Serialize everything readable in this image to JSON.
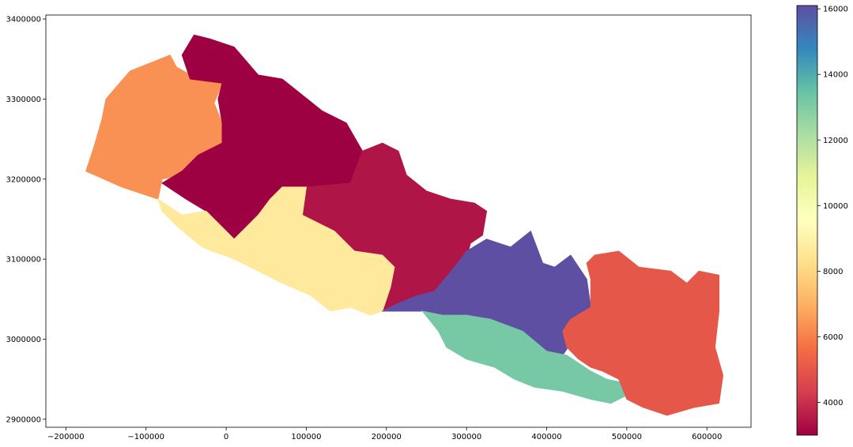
{
  "chart_data": {
    "type": "choropleth",
    "title": "",
    "xlabel": "",
    "ylabel": "",
    "xlim": [
      -225000,
      655000
    ],
    "ylim": [
      2890000,
      3405000
    ],
    "x_ticks": [
      -200000,
      -100000,
      0,
      100000,
      200000,
      300000,
      400000,
      500000,
      600000
    ],
    "y_ticks": [
      2900000,
      3000000,
      3100000,
      3200000,
      3300000,
      3400000
    ],
    "x_tick_labels": [
      "−200000",
      "−100000",
      "0",
      "100000",
      "200000",
      "300000",
      "400000",
      "500000",
      "600000"
    ],
    "y_tick_labels": [
      "2900000",
      "3000000",
      "3100000",
      "3200000",
      "3300000",
      "3400000"
    ],
    "colormap": "Spectral",
    "colorbar": {
      "range": [
        3000,
        16100
      ],
      "ticks": [
        4000,
        6000,
        8000,
        10000,
        12000,
        14000,
        16000
      ],
      "tick_labels": [
        "4000",
        "6000",
        "8000",
        "10000",
        "12000",
        "14000",
        "16000"
      ],
      "stops": [
        {
          "v": 0.0,
          "color": "#9e0142"
        },
        {
          "v": 0.1,
          "color": "#d53e4f"
        },
        {
          "v": 0.2,
          "color": "#f46d43"
        },
        {
          "v": 0.3,
          "color": "#fdae61"
        },
        {
          "v": 0.4,
          "color": "#fee08b"
        },
        {
          "v": 0.5,
          "color": "#ffffbf"
        },
        {
          "v": 0.6,
          "color": "#e6f598"
        },
        {
          "v": 0.7,
          "color": "#abdda4"
        },
        {
          "v": 0.8,
          "color": "#66c2a5"
        },
        {
          "v": 0.9,
          "color": "#3288bd"
        },
        {
          "v": 1.0,
          "color": "#5e4fa2"
        }
      ]
    },
    "regions": [
      {
        "value": 6500,
        "color": "#f99155",
        "polygon": [
          [
            -70000,
            3355000
          ],
          [
            -62000,
            3340000
          ],
          [
            -35000,
            3325000
          ],
          [
            -5000,
            3320000
          ],
          [
            -15000,
            3295000
          ],
          [
            -5000,
            3270000
          ],
          [
            -5000,
            3240000
          ],
          [
            -35000,
            3225000
          ],
          [
            -55000,
            3205000
          ],
          [
            -80000,
            3200000
          ],
          [
            -85000,
            3175000
          ],
          [
            -130000,
            3190000
          ],
          [
            -175000,
            3210000
          ],
          [
            -165000,
            3240000
          ],
          [
            -155000,
            3275000
          ],
          [
            -150000,
            3300000
          ],
          [
            -120000,
            3335000
          ]
        ]
      },
      {
        "value": 3000,
        "color": "#9e0142",
        "polygon": [
          [
            -40000,
            3380000
          ],
          [
            -20000,
            3375000
          ],
          [
            10000,
            3365000
          ],
          [
            40000,
            3330000
          ],
          [
            70000,
            3325000
          ],
          [
            120000,
            3285000
          ],
          [
            150000,
            3270000
          ],
          [
            170000,
            3235000
          ],
          [
            155000,
            3195000
          ],
          [
            100000,
            3190000
          ],
          [
            70000,
            3165000
          ],
          [
            40000,
            3155000
          ],
          [
            10000,
            3125000
          ],
          [
            -25000,
            3160000
          ],
          [
            -50000,
            3175000
          ],
          [
            -80000,
            3195000
          ],
          [
            -55000,
            3210000
          ],
          [
            -35000,
            3230000
          ],
          [
            -5000,
            3245000
          ],
          [
            -5000,
            3270000
          ],
          [
            -10000,
            3300000
          ],
          [
            -5000,
            3320000
          ],
          [
            -45000,
            3325000
          ],
          [
            -55000,
            3355000
          ]
        ]
      },
      {
        "value": 3600,
        "color": "#af1547",
        "polygon": [
          [
            170000,
            3235000
          ],
          [
            195000,
            3245000
          ],
          [
            215000,
            3235000
          ],
          [
            225000,
            3205000
          ],
          [
            250000,
            3185000
          ],
          [
            280000,
            3175000
          ],
          [
            310000,
            3170000
          ],
          [
            325000,
            3160000
          ],
          [
            320000,
            3130000
          ],
          [
            305000,
            3120000
          ],
          [
            295000,
            3085000
          ],
          [
            260000,
            3060000
          ],
          [
            240000,
            3055000
          ],
          [
            215000,
            3045000
          ],
          [
            195000,
            3035000
          ],
          [
            205000,
            3065000
          ],
          [
            210000,
            3090000
          ],
          [
            195000,
            3105000
          ],
          [
            160000,
            3110000
          ],
          [
            135000,
            3135000
          ],
          [
            95000,
            3155000
          ],
          [
            100000,
            3190000
          ],
          [
            155000,
            3195000
          ]
        ]
      },
      {
        "value": 9000,
        "color": "#fee99c",
        "polygon": [
          [
            -85000,
            3175000
          ],
          [
            -55000,
            3155000
          ],
          [
            -25000,
            3160000
          ],
          [
            10000,
            3125000
          ],
          [
            40000,
            3155000
          ],
          [
            55000,
            3175000
          ],
          [
            70000,
            3190000
          ],
          [
            100000,
            3190000
          ],
          [
            95000,
            3155000
          ],
          [
            135000,
            3135000
          ],
          [
            160000,
            3110000
          ],
          [
            195000,
            3105000
          ],
          [
            210000,
            3090000
          ],
          [
            205000,
            3065000
          ],
          [
            195000,
            3035000
          ],
          [
            180000,
            3030000
          ],
          [
            155000,
            3040000
          ],
          [
            130000,
            3035000
          ],
          [
            105000,
            3055000
          ],
          [
            70000,
            3070000
          ],
          [
            40000,
            3085000
          ],
          [
            10000,
            3100000
          ],
          [
            -30000,
            3115000
          ],
          [
            -60000,
            3140000
          ],
          [
            -80000,
            3160000
          ]
        ]
      },
      {
        "value": 16000,
        "color": "#5e4fa2",
        "polygon": [
          [
            195000,
            3035000
          ],
          [
            215000,
            3045000
          ],
          [
            240000,
            3055000
          ],
          [
            260000,
            3060000
          ],
          [
            285000,
            3090000
          ],
          [
            300000,
            3110000
          ],
          [
            325000,
            3125000
          ],
          [
            355000,
            3115000
          ],
          [
            380000,
            3135000
          ],
          [
            395000,
            3095000
          ],
          [
            410000,
            3090000
          ],
          [
            430000,
            3105000
          ],
          [
            450000,
            3075000
          ],
          [
            455000,
            3040000
          ],
          [
            425000,
            3020000
          ],
          [
            430000,
            2995000
          ],
          [
            420000,
            2980000
          ],
          [
            400000,
            2985000
          ],
          [
            370000,
            3010000
          ],
          [
            330000,
            3025000
          ],
          [
            300000,
            3030000
          ],
          [
            270000,
            3030000
          ],
          [
            245000,
            3035000
          ],
          [
            215000,
            3035000
          ]
        ]
      },
      {
        "value": 13000,
        "color": "#77c8a5",
        "polygon": [
          [
            245000,
            3035000
          ],
          [
            270000,
            3030000
          ],
          [
            300000,
            3030000
          ],
          [
            330000,
            3025000
          ],
          [
            370000,
            3010000
          ],
          [
            400000,
            2985000
          ],
          [
            425000,
            2980000
          ],
          [
            440000,
            2970000
          ],
          [
            455000,
            2960000
          ],
          [
            475000,
            2950000
          ],
          [
            500000,
            2945000
          ],
          [
            500000,
            2930000
          ],
          [
            480000,
            2920000
          ],
          [
            455000,
            2925000
          ],
          [
            420000,
            2935000
          ],
          [
            385000,
            2940000
          ],
          [
            360000,
            2950000
          ],
          [
            335000,
            2965000
          ],
          [
            300000,
            2975000
          ],
          [
            275000,
            2990000
          ],
          [
            265000,
            3010000
          ]
        ]
      },
      {
        "value": 5000,
        "color": "#e55749",
        "polygon": [
          [
            455000,
            3040000
          ],
          [
            455000,
            3075000
          ],
          [
            450000,
            3095000
          ],
          [
            460000,
            3105000
          ],
          [
            490000,
            3110000
          ],
          [
            515000,
            3090000
          ],
          [
            555000,
            3085000
          ],
          [
            575000,
            3070000
          ],
          [
            590000,
            3085000
          ],
          [
            615000,
            3080000
          ],
          [
            615000,
            3035000
          ],
          [
            610000,
            2990000
          ],
          [
            620000,
            2955000
          ],
          [
            615000,
            2920000
          ],
          [
            585000,
            2915000
          ],
          [
            550000,
            2905000
          ],
          [
            520000,
            2915000
          ],
          [
            500000,
            2925000
          ],
          [
            490000,
            2950000
          ],
          [
            470000,
            2960000
          ],
          [
            455000,
            2965000
          ],
          [
            440000,
            2975000
          ],
          [
            425000,
            2990000
          ],
          [
            420000,
            3010000
          ],
          [
            430000,
            3025000
          ]
        ]
      }
    ]
  }
}
